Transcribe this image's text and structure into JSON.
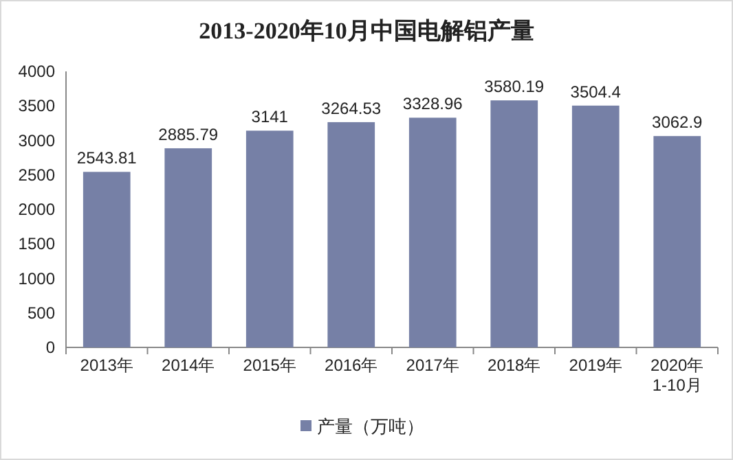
{
  "chart_data": {
    "type": "bar",
    "title": "2013-2020年10月中国电解铝产量",
    "categories": [
      "2013年",
      "2014年",
      "2015年",
      "2016年",
      "2017年",
      "2018年",
      "2019年",
      "2020年\n1-10月"
    ],
    "series": [
      {
        "name": "产量（万吨）",
        "color": "#7680a6",
        "values": [
          2543.81,
          2885.79,
          3141,
          3264.53,
          3328.96,
          3580.19,
          3504.4,
          3062.9
        ]
      }
    ],
    "ylim": [
      0,
      4000
    ],
    "yticks": [
      0,
      500,
      1000,
      1500,
      2000,
      2500,
      3000,
      3500,
      4000
    ],
    "data_labels": true,
    "legend": "bottom",
    "grid": false
  }
}
